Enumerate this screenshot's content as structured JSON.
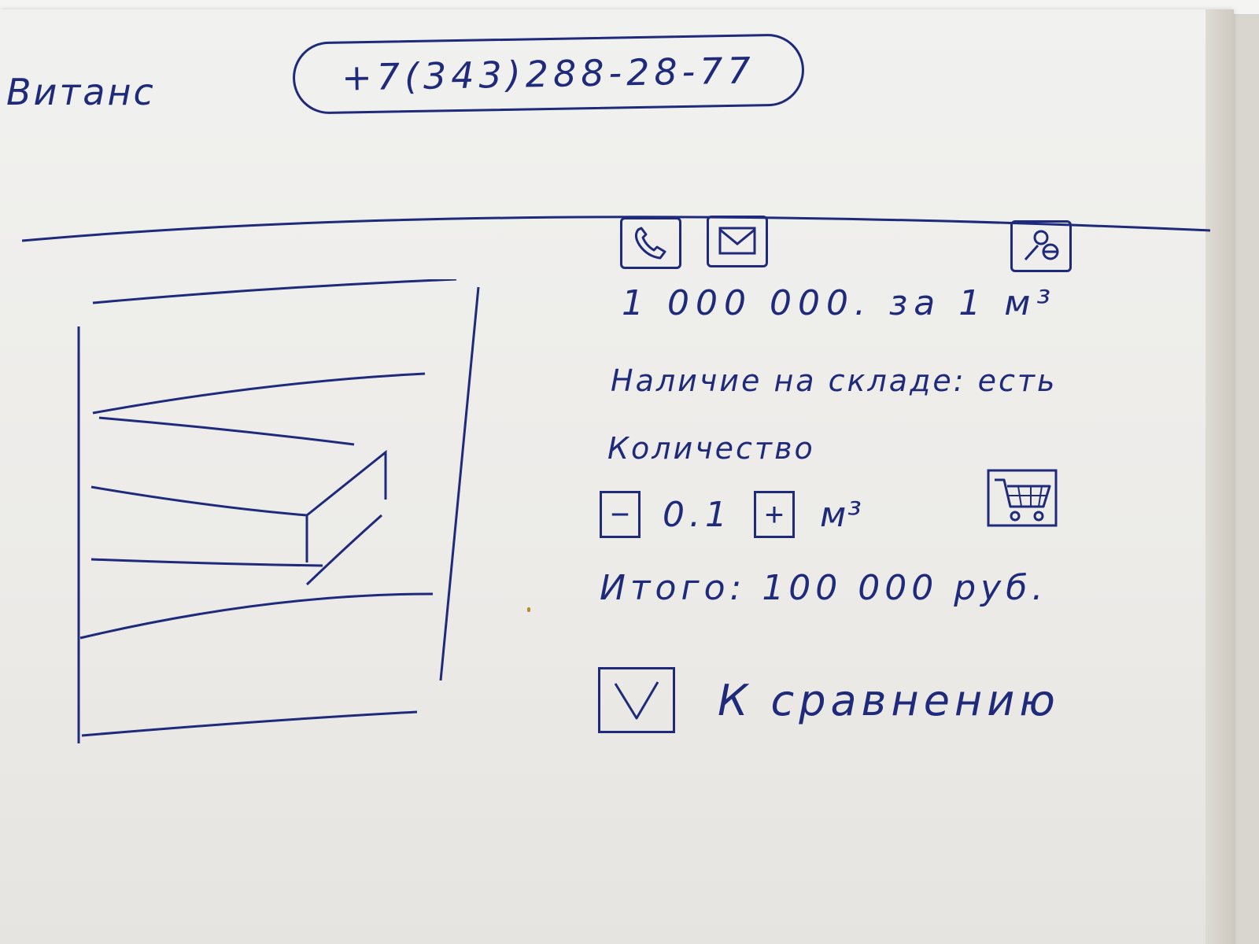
{
  "brand": {
    "logo_text": "Витанс"
  },
  "header": {
    "phone": "+7(343)288-28-77"
  },
  "toolbar": {
    "icons": [
      "phone-icon",
      "mail-icon",
      "user-cabinet-icon"
    ]
  },
  "product": {
    "price": "1 000 000. за 1 м³",
    "stock_text": "Наличие на складе: есть",
    "quantity_label": "Количество",
    "quantity_value": "0.1",
    "quantity_unit": "м³",
    "decrement_label": "−",
    "increment_label": "+",
    "total_text": "Итого: 100 000 руб.",
    "compare_label": "К сравнению",
    "compare_checked": true
  },
  "colors": {
    "ink": "#1f2a7a",
    "paper": "#efefec"
  }
}
